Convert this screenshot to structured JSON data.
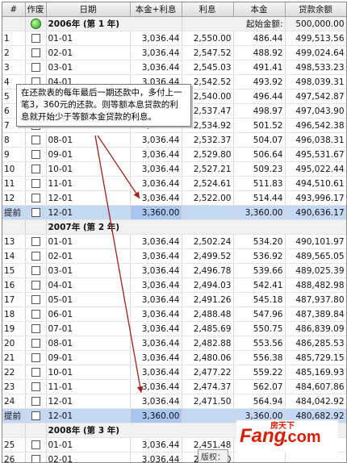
{
  "headers": {
    "no": "#",
    "action": "作废",
    "date": "日期",
    "payment": "本金+利息",
    "interest": "利息",
    "principal": "本金",
    "balance": "贷款余额"
  },
  "section1": {
    "label": "2006年 (第 1 年)",
    "start_label": "起始金额:",
    "start_value": "500,000.00"
  },
  "rows1": [
    {
      "n": "1",
      "d": "01-01",
      "p": "3,036.44",
      "i": "2,550.00",
      "c": "486.44",
      "b": "499,513.56"
    },
    {
      "n": "2",
      "d": "02-01",
      "p": "3,036.44",
      "i": "2,547.52",
      "c": "488.92",
      "b": "499,024.64"
    },
    {
      "n": "3",
      "d": "03-01",
      "p": "3,036.44",
      "i": "2,545.03",
      "c": "491.41",
      "b": "498,533.23"
    },
    {
      "n": "4",
      "d": "04-01",
      "p": "3,036.44",
      "i": "2,542.52",
      "c": "493.92",
      "b": "498,039.31"
    },
    {
      "n": "5",
      "d": "05-01",
      "p": "3,036.44",
      "i": "2,540.00",
      "c": "496.44",
      "b": "497,542.87"
    },
    {
      "n": "6",
      "d": "06-01",
      "p": "3,036.44",
      "i": "2,537.47",
      "c": "498.97",
      "b": "497,043.90"
    },
    {
      "n": "7",
      "d": "07-01",
      "p": "3,036.44",
      "i": "2,534.92",
      "c": "501.52",
      "b": "496,542.38"
    },
    {
      "n": "8",
      "d": "08-01",
      "p": "3,036.44",
      "i": "2,532.37",
      "c": "504.07",
      "b": "496,038.31"
    },
    {
      "n": "9",
      "d": "09-01",
      "p": "3,036.44",
      "i": "2,529.80",
      "c": "506.64",
      "b": "495,531.67"
    },
    {
      "n": "10",
      "d": "10-01",
      "p": "3,036.44",
      "i": "2,527.21",
      "c": "509.23",
      "b": "495,022.44"
    },
    {
      "n": "11",
      "d": "11-01",
      "p": "3,036.44",
      "i": "2,524.61",
      "c": "511.83",
      "b": "494,510.61"
    },
    {
      "n": "12",
      "d": "12-01",
      "p": "3,036.44",
      "i": "2,522.00",
      "c": "514.44",
      "b": "493,996.17"
    }
  ],
  "prepay1": {
    "n": "提前",
    "d": "12-01",
    "p": "3,360.00",
    "c": "3,360.00",
    "b": "490,636.17"
  },
  "section2": {
    "label": "2007年 (第 2 年)"
  },
  "rows2": [
    {
      "n": "13",
      "d": "01-01",
      "p": "3,036.44",
      "i": "2,502.24",
      "c": "534.20",
      "b": "490,101.97"
    },
    {
      "n": "14",
      "d": "02-01",
      "p": "3,036.44",
      "i": "2,499.52",
      "c": "536.92",
      "b": "489,565.05"
    },
    {
      "n": "15",
      "d": "03-01",
      "p": "3,036.44",
      "i": "2,496.78",
      "c": "539.66",
      "b": "489,025.39"
    },
    {
      "n": "16",
      "d": "04-01",
      "p": "3,036.44",
      "i": "2,494.03",
      "c": "542.41",
      "b": "488,482.98"
    },
    {
      "n": "17",
      "d": "05-01",
      "p": "3,036.44",
      "i": "2,491.26",
      "c": "545.18",
      "b": "487,937.80"
    },
    {
      "n": "18",
      "d": "06-01",
      "p": "3,036.44",
      "i": "2,488.48",
      "c": "547.96",
      "b": "487,389.84"
    },
    {
      "n": "19",
      "d": "07-01",
      "p": "3,036.44",
      "i": "2,485.69",
      "c": "550.75",
      "b": "486,839.09"
    },
    {
      "n": "20",
      "d": "08-01",
      "p": "3,036.44",
      "i": "2,482.88",
      "c": "553.56",
      "b": "486,285.53"
    },
    {
      "n": "21",
      "d": "09-01",
      "p": "3,036.44",
      "i": "2,480.06",
      "c": "556.38",
      "b": "485,729.15"
    },
    {
      "n": "22",
      "d": "10-01",
      "p": "3,036.44",
      "i": "2,477.22",
      "c": "559.22",
      "b": "485,169.93"
    },
    {
      "n": "23",
      "d": "11-01",
      "p": "3,036.44",
      "i": "2,474.37",
      "c": "562.07",
      "b": "484,607.86"
    },
    {
      "n": "24",
      "d": "12-01",
      "p": "3,036.44",
      "i": "2,471.50",
      "c": "564.94",
      "b": "484,042.92"
    }
  ],
  "prepay2": {
    "n": "提前",
    "d": "12-01",
    "p": "3,360.00",
    "c": "3,360.00",
    "b": "480,682.92"
  },
  "section3": {
    "label": "2008年 (第 3 年)"
  },
  "rows3": [
    {
      "n": "25",
      "d": "01-01",
      "p": "3,036.44",
      "i": "2,451.48",
      "c": "",
      "b": ""
    },
    {
      "n": "26",
      "d": "02-01",
      "p": "3,036.44",
      "i": "2,448.50",
      "c": "",
      "b": ""
    },
    {
      "n": "27",
      "d": "03-01",
      "p": "3,036.44",
      "i": "2,445.51",
      "c": "",
      "b": ""
    }
  ],
  "note": "在还款表的每年最后一期还款中，多付上一笔3，360元的还款。则等额本息贷款的利息就开始少于等额本金贷款的利息。",
  "logo": {
    "brand": "Fang",
    "dotcom": ".com",
    "cn": "房天下"
  },
  "version_label": "版权："
}
